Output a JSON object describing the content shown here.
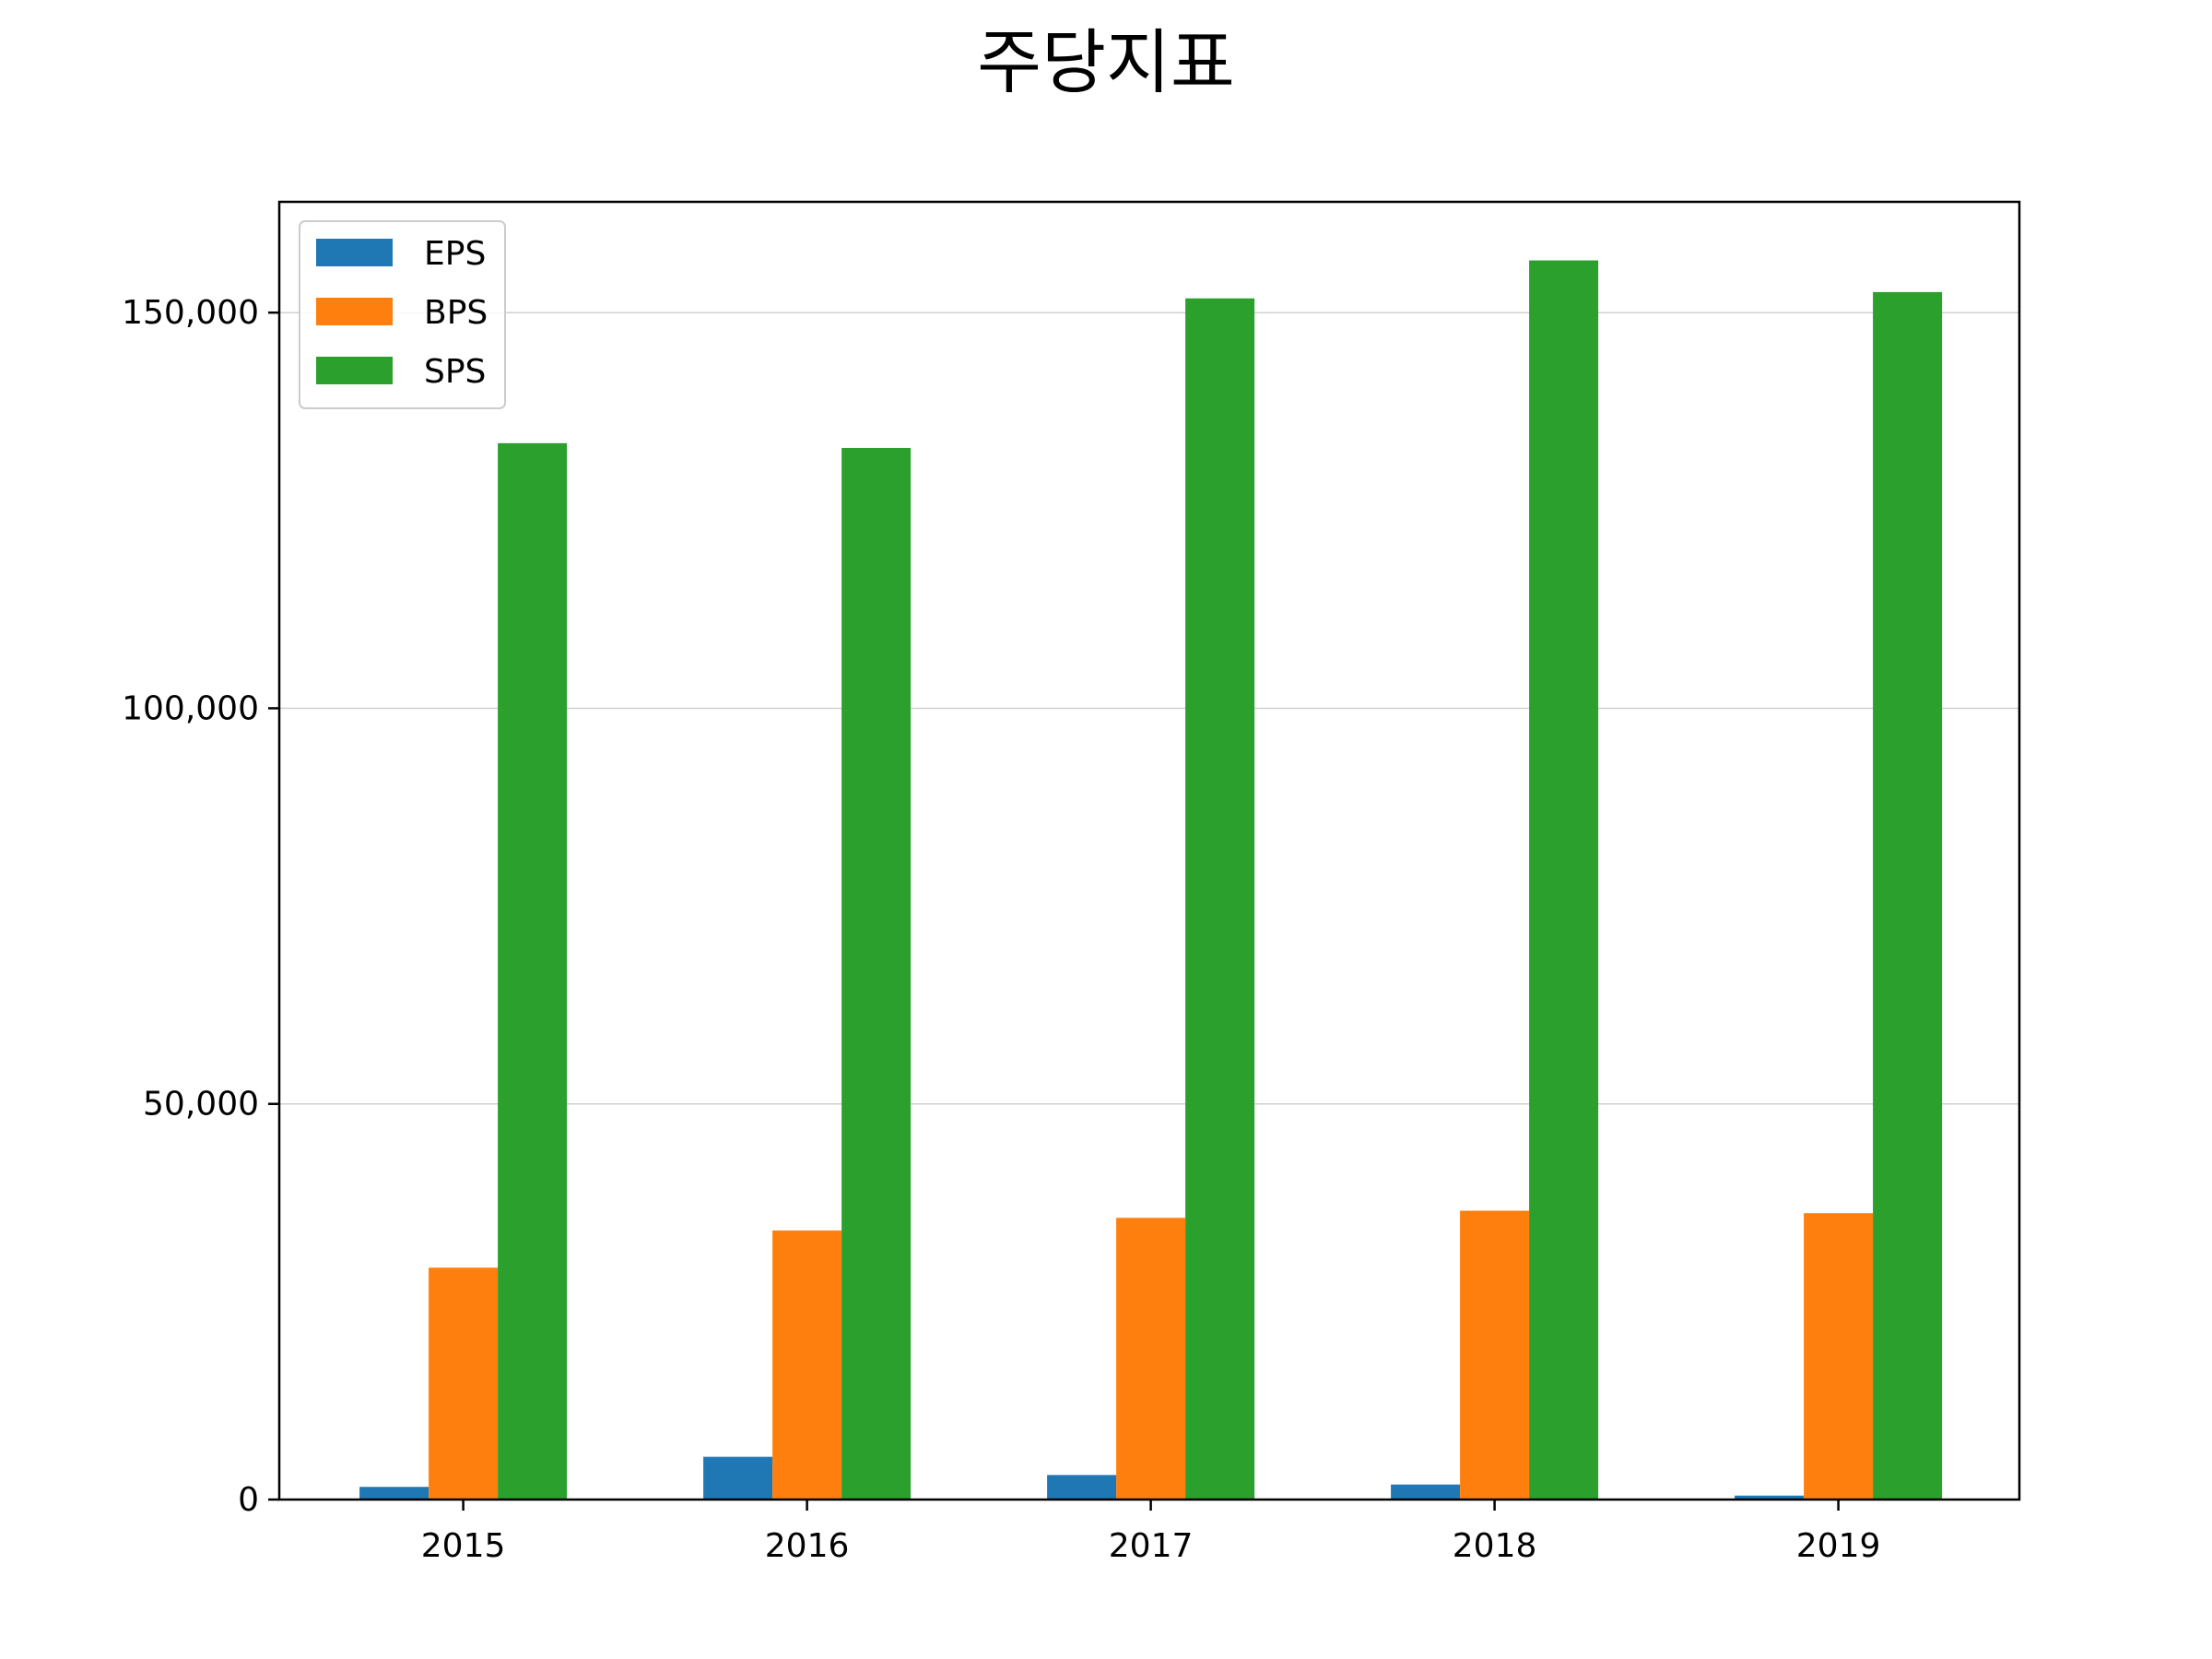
{
  "chart_data": {
    "type": "bar",
    "title": "주당지표",
    "xlabel": "",
    "ylabel": "",
    "categories": [
      "2015",
      "2016",
      "2017",
      "2018",
      "2019"
    ],
    "series": [
      {
        "name": "EPS",
        "color": "#1f77b4",
        "values": [
          1600,
          5400,
          3100,
          1900,
          500
        ]
      },
      {
        "name": "BPS",
        "color": "#ff7f0e",
        "values": [
          29300,
          34000,
          35600,
          36500,
          36200
        ]
      },
      {
        "name": "SPS",
        "color": "#2ca02c",
        "values": [
          133500,
          132900,
          151800,
          156600,
          152600
        ]
      }
    ],
    "ylim": [
      0,
      164000
    ],
    "yticks": [
      0,
      50000,
      100000,
      150000
    ],
    "ytick_labels": [
      "0",
      "50,000",
      "100,000",
      "150,000"
    ],
    "grid": "y-major",
    "legend": "upper-left"
  }
}
